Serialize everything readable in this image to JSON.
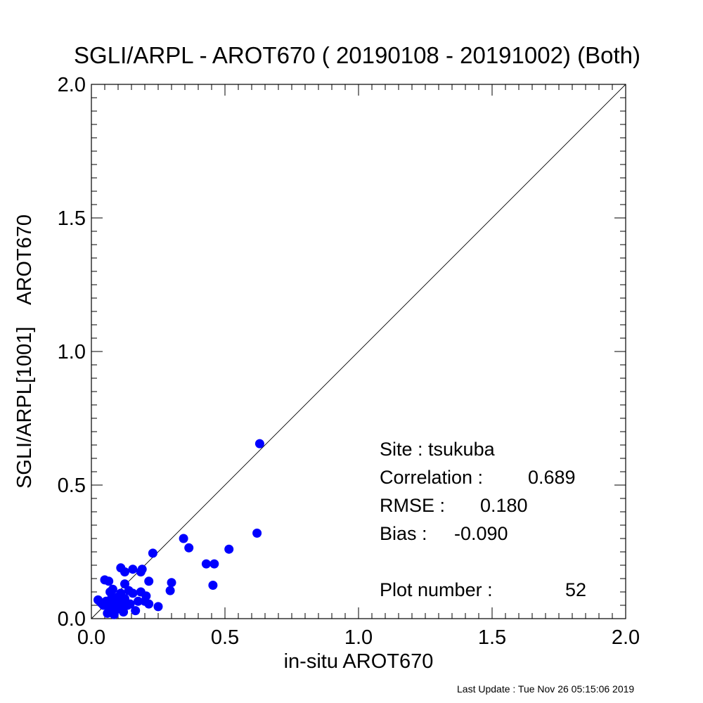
{
  "chart_data": {
    "type": "scatter",
    "title": "SGLI/ARPL - AROT670 ( 20190108 - 20191002) (Both)",
    "xlabel": "in-situ AROT670",
    "ylabel": "SGLI/ARPL[1001]    AROT670",
    "xlim": [
      0.0,
      2.0
    ],
    "ylim": [
      0.0,
      2.0
    ],
    "xticks": [
      "0.0",
      "0.5",
      "1.0",
      "1.5",
      "2.0"
    ],
    "yticks": [
      "0.0",
      "0.5",
      "1.0",
      "1.5",
      "2.0"
    ],
    "minor_tick_step": 0.05,
    "reference_line": "1:1",
    "marker_color": "#0000ff",
    "line_color": "#000000",
    "grid": false,
    "points": [
      [
        0.63,
        0.655
      ],
      [
        0.62,
        0.32
      ],
      [
        0.515,
        0.26
      ],
      [
        0.46,
        0.205
      ],
      [
        0.43,
        0.205
      ],
      [
        0.455,
        0.125
      ],
      [
        0.345,
        0.3
      ],
      [
        0.365,
        0.265
      ],
      [
        0.23,
        0.245
      ],
      [
        0.3,
        0.135
      ],
      [
        0.295,
        0.105
      ],
      [
        0.25,
        0.045
      ],
      [
        0.215,
        0.14
      ],
      [
        0.215,
        0.055
      ],
      [
        0.205,
        0.085
      ],
      [
        0.2,
        0.065
      ],
      [
        0.19,
        0.185
      ],
      [
        0.185,
        0.175
      ],
      [
        0.185,
        0.1
      ],
      [
        0.175,
        0.065
      ],
      [
        0.165,
        0.03
      ],
      [
        0.155,
        0.185
      ],
      [
        0.155,
        0.095
      ],
      [
        0.145,
        0.055
      ],
      [
        0.14,
        0.105
      ],
      [
        0.135,
        0.05
      ],
      [
        0.125,
        0.175
      ],
      [
        0.125,
        0.13
      ],
      [
        0.125,
        0.075
      ],
      [
        0.12,
        0.045
      ],
      [
        0.12,
        0.025
      ],
      [
        0.11,
        0.19
      ],
      [
        0.11,
        0.095
      ],
      [
        0.105,
        0.06
      ],
      [
        0.1,
        0.04
      ],
      [
        0.095,
        0.035
      ],
      [
        0.09,
        0.055
      ],
      [
        0.085,
        0.015
      ],
      [
        0.08,
        0.11
      ],
      [
        0.08,
        0.04
      ],
      [
        0.075,
        0.075
      ],
      [
        0.07,
        0.03
      ],
      [
        0.065,
        0.14
      ],
      [
        0.065,
        0.055
      ],
      [
        0.06,
        0.02
      ],
      [
        0.055,
        0.065
      ],
      [
        0.05,
        0.145
      ],
      [
        0.045,
        0.05
      ],
      [
        0.035,
        0.06
      ],
      [
        0.025,
        0.07
      ],
      [
        0.07,
        0.1
      ],
      [
        0.095,
        0.08
      ]
    ]
  },
  "stats": {
    "site_label": "Site : tsukuba",
    "correlation_label": "Correlation :",
    "correlation_value": "0.689",
    "rmse_label": "RMSE :",
    "rmse_value": "0.180",
    "bias_label": "Bias :",
    "bias_value": "-0.090",
    "plot_number_label": "Plot number :",
    "plot_number_value": "52"
  },
  "footer": {
    "last_update": "Last Update : Tue Nov 26 05:15:06 2019"
  }
}
